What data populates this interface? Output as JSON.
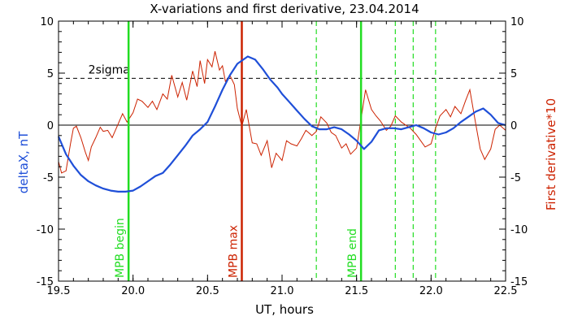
{
  "chart_data": {
    "type": "line",
    "title": "X-variations and first derivative, 23.04.2014",
    "xlabel": "UT, hours",
    "ylabel_left": "deltaX, nT",
    "ylabel_right": "First derivative*10",
    "xlim": [
      19.5,
      22.5
    ],
    "ylim": [
      -15,
      10
    ],
    "ylim_right": [
      -15,
      10
    ],
    "x_ticks": [
      "19.5",
      "20.0",
      "20.5",
      "21.0",
      "21.5",
      "22.0",
      "22.5"
    ],
    "y_ticks": [
      "-15",
      "-10",
      "-5",
      "0",
      "5",
      "10"
    ],
    "colors": {
      "deltaX": "#1f4fd8",
      "derivative": "#cc2200",
      "mpb_boundary": "#22dd22",
      "mpb_max": "#cc2200",
      "dashed_markers": "#22dd22",
      "axes": "#000000"
    },
    "threshold": {
      "label": "2sigma",
      "value": 4.5,
      "style": "dashed"
    },
    "zero_line": 0,
    "markers": [
      {
        "x": 19.97,
        "label": "MPB begin",
        "color": "#22dd22",
        "style": "solid"
      },
      {
        "x": 20.73,
        "label": "MPB max",
        "color": "#cc2200",
        "style": "solid"
      },
      {
        "x": 21.53,
        "label": "MPB end",
        "color": "#22dd22",
        "style": "solid"
      },
      {
        "x": 21.23,
        "label": "",
        "color": "#22dd22",
        "style": "dashed"
      },
      {
        "x": 21.76,
        "label": "",
        "color": "#22dd22",
        "style": "dashed"
      },
      {
        "x": 21.88,
        "label": "",
        "color": "#22dd22",
        "style": "dashed"
      },
      {
        "x": 22.03,
        "label": "",
        "color": "#22dd22",
        "style": "dashed"
      }
    ],
    "series": [
      {
        "key": "deltaX",
        "axis": "left",
        "x": [
          19.5,
          19.55,
          19.6,
          19.65,
          19.7,
          19.75,
          19.8,
          19.85,
          19.9,
          19.95,
          20.0,
          20.05,
          20.1,
          20.15,
          20.2,
          20.25,
          20.3,
          20.35,
          20.4,
          20.45,
          20.5,
          20.55,
          20.6,
          20.65,
          20.7,
          20.73,
          20.77,
          20.82,
          20.87,
          20.92,
          20.97,
          21.0,
          21.05,
          21.1,
          21.15,
          21.2,
          21.25,
          21.3,
          21.35,
          21.4,
          21.45,
          21.5,
          21.55,
          21.6,
          21.65,
          21.7,
          21.75,
          21.8,
          21.85,
          21.9,
          21.95,
          22.0,
          22.05,
          22.1,
          22.15,
          22.2,
          22.25,
          22.3,
          22.35,
          22.4,
          22.45,
          22.5
        ],
        "y": [
          -1.1,
          -2.8,
          -3.9,
          -4.8,
          -5.4,
          -5.8,
          -6.1,
          -6.3,
          -6.4,
          -6.4,
          -6.3,
          -5.9,
          -5.4,
          -4.9,
          -4.6,
          -3.8,
          -2.9,
          -2.0,
          -1.0,
          -0.4,
          0.3,
          1.8,
          3.4,
          4.8,
          5.9,
          6.2,
          6.6,
          6.3,
          5.4,
          4.4,
          3.6,
          3.0,
          2.2,
          1.4,
          0.6,
          -0.1,
          -0.4,
          -0.4,
          -0.2,
          -0.4,
          -0.9,
          -1.5,
          -2.3,
          -1.6,
          -0.5,
          -0.3,
          -0.3,
          -0.4,
          -0.2,
          0.0,
          -0.3,
          -0.7,
          -0.9,
          -0.7,
          -0.3,
          0.3,
          0.8,
          1.3,
          1.6,
          1.0,
          0.2,
          0.0
        ]
      },
      {
        "key": "derivative",
        "axis": "right",
        "x": [
          19.5,
          19.52,
          19.55,
          19.58,
          19.6,
          19.62,
          19.65,
          19.68,
          19.7,
          19.72,
          19.75,
          19.78,
          19.8,
          19.83,
          19.86,
          19.9,
          19.93,
          19.96,
          20.0,
          20.03,
          20.06,
          20.1,
          20.13,
          20.16,
          20.2,
          20.23,
          20.26,
          20.3,
          20.33,
          20.36,
          20.4,
          20.43,
          20.45,
          20.48,
          20.5,
          20.53,
          20.55,
          20.58,
          20.6,
          20.62,
          20.65,
          20.68,
          20.7,
          20.73,
          20.76,
          20.8,
          20.83,
          20.86,
          20.9,
          20.93,
          20.96,
          21.0,
          21.03,
          21.06,
          21.1,
          21.13,
          21.16,
          21.2,
          21.23,
          21.26,
          21.3,
          21.33,
          21.36,
          21.4,
          21.43,
          21.46,
          21.5,
          21.53,
          21.56,
          21.6,
          21.63,
          21.66,
          21.7,
          21.73,
          21.76,
          21.8,
          21.83,
          21.86,
          21.9,
          21.93,
          21.96,
          22.0,
          22.03,
          22.06,
          22.1,
          22.13,
          22.16,
          22.2,
          22.23,
          22.26,
          22.3,
          22.33,
          22.36,
          22.4,
          22.43,
          22.46,
          22.5
        ],
        "y": [
          -3.5,
          -4.6,
          -4.4,
          -1.8,
          -0.3,
          -0.1,
          -1.2,
          -2.6,
          -3.4,
          -2.1,
          -1.2,
          -0.2,
          -0.6,
          -0.5,
          -1.2,
          0.1,
          1.1,
          0.3,
          1.2,
          2.5,
          2.3,
          1.7,
          2.3,
          1.5,
          3.0,
          2.5,
          4.8,
          2.7,
          4.1,
          2.4,
          5.2,
          3.7,
          6.2,
          4.0,
          6.3,
          5.6,
          7.1,
          5.3,
          5.7,
          4.2,
          4.8,
          3.9,
          1.6,
          -0.1,
          1.5,
          -1.7,
          -1.8,
          -2.9,
          -1.5,
          -4.1,
          -2.7,
          -3.4,
          -1.5,
          -1.8,
          -2.0,
          -1.3,
          -0.5,
          -1.0,
          -0.6,
          0.8,
          0.2,
          -0.7,
          -1.0,
          -2.2,
          -1.8,
          -2.8,
          -2.2,
          0.6,
          3.4,
          1.5,
          0.9,
          0.4,
          -0.5,
          -0.1,
          0.9,
          0.3,
          0.0,
          -0.3,
          -0.9,
          -1.5,
          -2.1,
          -1.8,
          -0.3,
          0.9,
          1.5,
          0.8,
          1.8,
          1.1,
          2.3,
          3.4,
          0.1,
          -2.3,
          -3.3,
          -2.3,
          -0.4,
          0.0,
          -0.5
        ]
      }
    ]
  }
}
